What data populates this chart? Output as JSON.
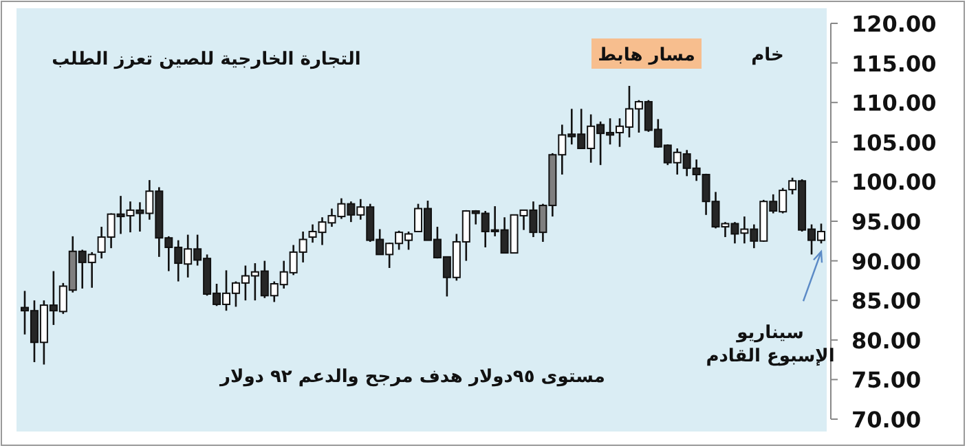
{
  "chart_data": {
    "type": "candlestick",
    "title": "التجارة الخارجية للصين تعزز الطلب",
    "subtitle": "خام",
    "annotations": [
      "مسار هابط",
      "سيناريو\nالإسبوع القادم",
      "مستوى ٩٥دولار هدف مرجح والدعم ٩٢ دولار"
    ],
    "categories": [
      null,
      null,
      null,
      null,
      null,
      null,
      null,
      null,
      null,
      null,
      null,
      null,
      null,
      null,
      null,
      null,
      null,
      null,
      null,
      null,
      null,
      null,
      null,
      null,
      null,
      null,
      null,
      null,
      null,
      null,
      null,
      null,
      null,
      null,
      null,
      null,
      null,
      null,
      null,
      null,
      null,
      null,
      null,
      null,
      null,
      null,
      null,
      null,
      null,
      null,
      null,
      null,
      null,
      null,
      null,
      null,
      null,
      null,
      null,
      null,
      null,
      null,
      null,
      null,
      null,
      null,
      null,
      null,
      null,
      null,
      null,
      null,
      null,
      null,
      null,
      null,
      null,
      null,
      null,
      null,
      null,
      null,
      null,
      null
    ],
    "ohlc": [
      [
        84.1,
        86.2,
        80.7,
        83.7
      ],
      [
        83.7,
        85.0,
        77.2,
        79.7
      ],
      [
        79.7,
        85.0,
        76.9,
        84.4
      ],
      [
        84.4,
        88.7,
        81.9,
        83.7
      ],
      [
        83.6,
        87.2,
        83.3,
        86.8
      ],
      [
        86.3,
        93.1,
        86.0,
        91.2
      ],
      [
        91.2,
        91.4,
        86.5,
        89.8
      ],
      [
        89.8,
        91.1,
        86.6,
        90.8
      ],
      [
        91.1,
        94.3,
        90.3,
        93.0
      ],
      [
        93.0,
        96.0,
        91.6,
        95.9
      ],
      [
        95.9,
        98.2,
        93.4,
        95.6
      ],
      [
        95.7,
        97.5,
        93.6,
        96.4
      ],
      [
        96.4,
        97.4,
        93.7,
        96.0
      ],
      [
        96.0,
        100.2,
        95.2,
        98.8
      ],
      [
        98.8,
        99.3,
        90.5,
        92.9
      ],
      [
        92.9,
        93.1,
        88.7,
        91.7
      ],
      [
        91.7,
        92.6,
        87.4,
        89.7
      ],
      [
        89.6,
        93.3,
        87.9,
        91.5
      ],
      [
        91.5,
        93.3,
        89.4,
        90.1
      ],
      [
        90.3,
        90.8,
        85.6,
        85.8
      ],
      [
        85.9,
        87.1,
        84.3,
        84.5
      ],
      [
        84.5,
        88.8,
        83.7,
        85.9
      ],
      [
        85.9,
        87.4,
        84.2,
        87.2
      ],
      [
        87.2,
        89.4,
        85.0,
        88.1
      ],
      [
        88.1,
        89.7,
        85.0,
        88.6
      ],
      [
        88.7,
        90.0,
        85.3,
        85.6
      ],
      [
        85.6,
        87.4,
        84.8,
        87.1
      ],
      [
        87.0,
        90.0,
        86.5,
        88.6
      ],
      [
        88.5,
        92.0,
        88.2,
        91.1
      ],
      [
        91.1,
        93.7,
        89.8,
        92.7
      ],
      [
        93.0,
        94.6,
        92.3,
        93.7
      ],
      [
        93.6,
        95.5,
        92.0,
        94.9
      ],
      [
        94.8,
        96.6,
        94.3,
        95.7
      ],
      [
        95.6,
        97.9,
        95.3,
        97.2
      ],
      [
        97.2,
        97.5,
        94.9,
        95.8
      ],
      [
        95.8,
        97.8,
        95.2,
        96.8
      ],
      [
        96.8,
        97.2,
        92.4,
        92.6
      ],
      [
        92.7,
        94.0,
        90.8,
        90.8
      ],
      [
        90.8,
        92.3,
        89.1,
        92.2
      ],
      [
        92.2,
        93.8,
        91.4,
        93.6
      ],
      [
        92.6,
        93.7,
        91.4,
        93.4
      ],
      [
        93.7,
        97.2,
        93.7,
        96.6
      ],
      [
        96.6,
        97.6,
        92.6,
        92.6
      ],
      [
        92.7,
        94.3,
        90.3,
        90.4
      ],
      [
        90.5,
        90.5,
        85.5,
        87.9
      ],
      [
        87.9,
        93.4,
        87.5,
        92.4
      ],
      [
        92.4,
        96.4,
        90.0,
        96.3
      ],
      [
        96.3,
        96.4,
        94.6,
        96.0
      ],
      [
        96.0,
        96.3,
        91.7,
        93.7
      ],
      [
        93.9,
        96.9,
        93.1,
        93.7
      ],
      [
        93.9,
        95.5,
        91.0,
        91.0
      ],
      [
        91.0,
        95.8,
        91.0,
        95.8
      ],
      [
        95.7,
        96.4,
        93.9,
        96.4
      ],
      [
        96.4,
        97.5,
        93.0,
        93.6
      ],
      [
        93.6,
        97.2,
        92.4,
        97.0
      ],
      [
        97.0,
        103.6,
        95.6,
        103.4
      ],
      [
        103.4,
        107.2,
        100.9,
        105.9
      ],
      [
        106.0,
        109.2,
        104.7,
        105.7
      ],
      [
        106.0,
        109.2,
        104.2,
        104.2
      ],
      [
        104.2,
        108.5,
        102.4,
        107.0
      ],
      [
        107.2,
        107.6,
        102.1,
        106.1
      ],
      [
        106.2,
        108.0,
        104.7,
        105.9
      ],
      [
        106.2,
        108.0,
        104.4,
        107.0
      ],
      [
        106.9,
        112.1,
        105.6,
        109.2
      ],
      [
        109.2,
        110.3,
        106.2,
        110.1
      ],
      [
        110.1,
        110.3,
        106.3,
        106.5
      ],
      [
        106.6,
        107.9,
        104.3,
        104.4
      ],
      [
        104.6,
        104.7,
        102.1,
        102.4
      ],
      [
        102.4,
        104.2,
        100.9,
        103.7
      ],
      [
        103.5,
        104.0,
        100.7,
        101.7
      ],
      [
        101.7,
        102.8,
        100.1,
        100.9
      ],
      [
        100.9,
        101.0,
        95.8,
        97.5
      ],
      [
        97.5,
        98.7,
        94.1,
        94.3
      ],
      [
        94.3,
        94.9,
        93.0,
        94.7
      ],
      [
        94.7,
        94.9,
        92.2,
        93.4
      ],
      [
        93.5,
        95.6,
        92.2,
        94.0
      ],
      [
        94.0,
        94.6,
        91.6,
        92.5
      ],
      [
        92.5,
        97.7,
        92.4,
        97.5
      ],
      [
        97.5,
        98.4,
        96.0,
        96.3
      ],
      [
        96.2,
        99.2,
        96.0,
        98.9
      ],
      [
        99.0,
        100.5,
        98.4,
        100.1
      ],
      [
        100.1,
        100.3,
        93.7,
        93.9
      ],
      [
        94.0,
        94.6,
        90.8,
        92.6
      ],
      [
        92.6,
        94.7,
        92.2,
        93.7
      ]
    ],
    "colors": [
      "#262626",
      "#262626",
      "#ffffff",
      "#262626",
      "#ffffff",
      "#7f7f7f",
      "#262626",
      "#ffffff",
      "#ffffff",
      "#ffffff",
      "#262626",
      "#ffffff",
      "#262626",
      "#ffffff",
      "#262626",
      "#262626",
      "#262626",
      "#ffffff",
      "#262626",
      "#262626",
      "#262626",
      "#ffffff",
      "#ffffff",
      "#ffffff",
      "#ffffff",
      "#262626",
      "#ffffff",
      "#ffffff",
      "#ffffff",
      "#ffffff",
      "#ffffff",
      "#ffffff",
      "#ffffff",
      "#ffffff",
      "#262626",
      "#ffffff",
      "#262626",
      "#262626",
      "#ffffff",
      "#ffffff",
      "#ffffff",
      "#ffffff",
      "#262626",
      "#262626",
      "#262626",
      "#ffffff",
      "#ffffff",
      "#262626",
      "#262626",
      "#262626",
      "#262626",
      "#ffffff",
      "#ffffff",
      "#262626",
      "#7f7f7f",
      "#7f7f7f",
      "#ffffff",
      "#262626",
      "#262626",
      "#ffffff",
      "#262626",
      "#262626",
      "#ffffff",
      "#ffffff",
      "#ffffff",
      "#262626",
      "#262626",
      "#262626",
      "#ffffff",
      "#262626",
      "#262626",
      "#262626",
      "#262626",
      "#ffffff",
      "#262626",
      "#ffffff",
      "#262626",
      "#ffffff",
      "#262626",
      "#ffffff",
      "#ffffff",
      "#262626",
      "#262626",
      "#ffffff"
    ],
    "ylim": [
      70,
      120
    ],
    "yticks": [
      {
        "value": 70,
        "label": "70.00"
      },
      {
        "value": 75,
        "label": "75.00"
      },
      {
        "value": 80,
        "label": "80.00"
      },
      {
        "value": 85,
        "label": "85.00"
      },
      {
        "value": 90,
        "label": "90.00"
      },
      {
        "value": 95,
        "label": "95.00"
      },
      {
        "value": 100,
        "label": "100.00"
      },
      {
        "value": 105,
        "label": "105.00"
      },
      {
        "value": 110,
        "label": "110.00"
      },
      {
        "value": 115,
        "label": "115.00"
      },
      {
        "value": 120,
        "label": "120.00"
      }
    ],
    "tick_labels": "y"
  }
}
